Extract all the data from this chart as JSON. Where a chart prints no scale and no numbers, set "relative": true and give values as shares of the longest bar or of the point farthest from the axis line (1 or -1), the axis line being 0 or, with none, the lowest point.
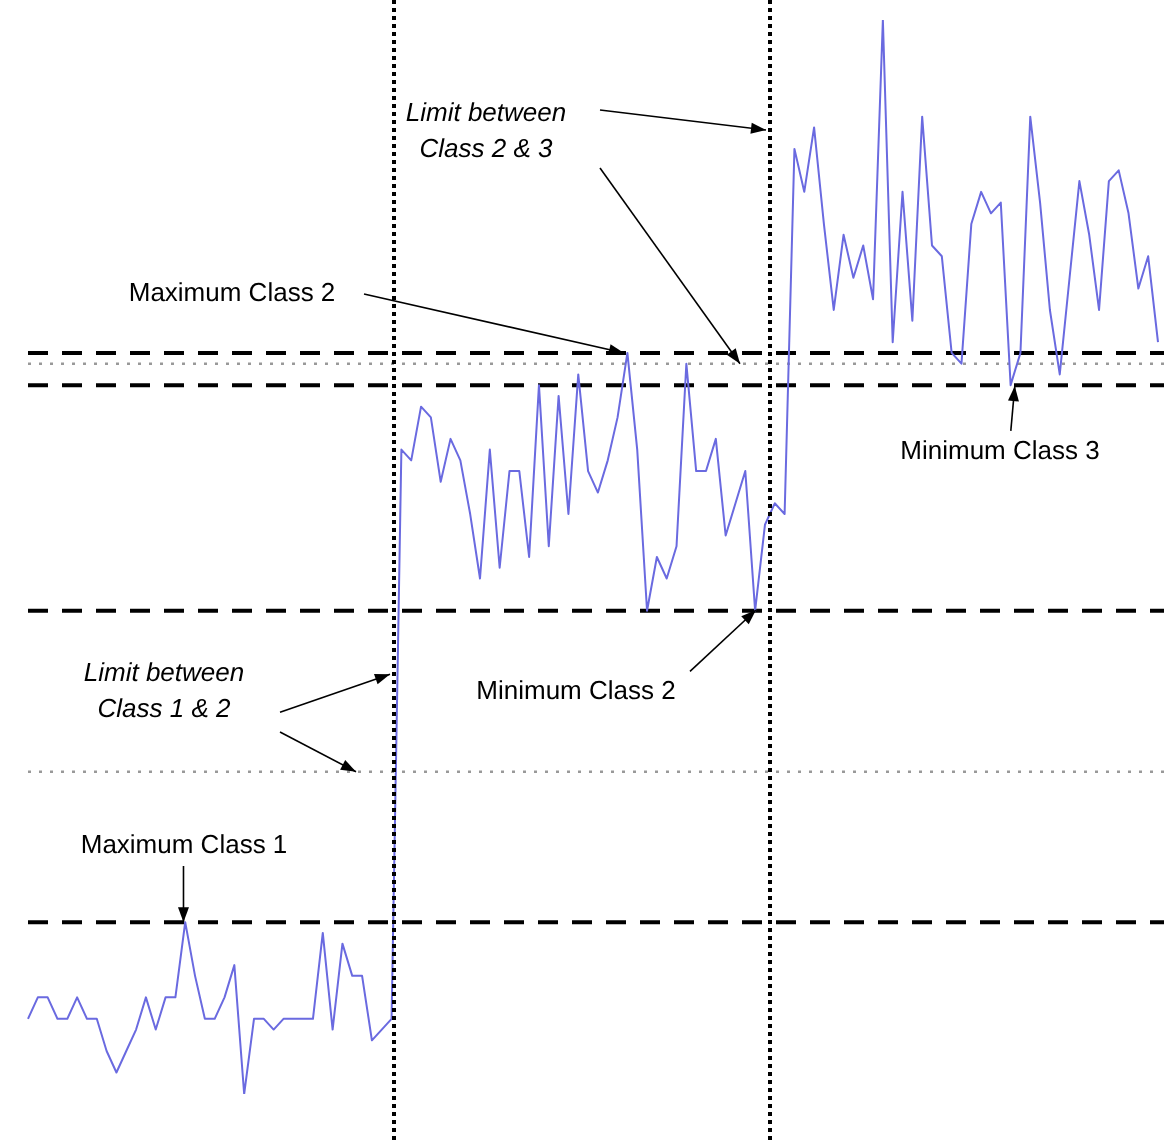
{
  "chart_data": {
    "type": "line",
    "relative": true,
    "categories": [
      null,
      null,
      null,
      null,
      null,
      null,
      null,
      null,
      null,
      null,
      null,
      null,
      null,
      null,
      null,
      null,
      null,
      null,
      null,
      null,
      null,
      null,
      null,
      null,
      null,
      null,
      null,
      null,
      null,
      null,
      null,
      null,
      null,
      null,
      null,
      null,
      null,
      null,
      null,
      null,
      null,
      null,
      null,
      null,
      null,
      null,
      null,
      null,
      null,
      null,
      null,
      null,
      null,
      null,
      null,
      null,
      null,
      null,
      null,
      null,
      null,
      null,
      null,
      null,
      null,
      null,
      null,
      null,
      null,
      null,
      null,
      null,
      null,
      null,
      null,
      null,
      null,
      null,
      null,
      null,
      null,
      null,
      null,
      null,
      null,
      null,
      null,
      null,
      null,
      null,
      null,
      null,
      null,
      null,
      null,
      null,
      null,
      null,
      null,
      null,
      null,
      null,
      null,
      null,
      null,
      null,
      null,
      null,
      null,
      null,
      null,
      null,
      null,
      null,
      null,
      null
    ],
    "series": [
      {
        "color": "#6a6ae0",
        "values": [
          0.07,
          0.09,
          0.09,
          0.07,
          0.07,
          0.09,
          0.07,
          0.07,
          0.04,
          0.02,
          0.04,
          0.06,
          0.09,
          0.06,
          0.09,
          0.09,
          0.16,
          0.11,
          0.07,
          0.07,
          0.09,
          0.12,
          0,
          0.07,
          0.07,
          0.06,
          0.07,
          0.07,
          0.07,
          0.07,
          0.15,
          0.06,
          0.14,
          0.11,
          0.11,
          0.05,
          0.06,
          0.07,
          0.6,
          0.59,
          0.64,
          0.63,
          0.57,
          0.61,
          0.59,
          0.54,
          0.48,
          0.6,
          0.49,
          0.58,
          0.58,
          0.5,
          0.66,
          0.51,
          0.65,
          0.54,
          0.67,
          0.58,
          0.56,
          0.59,
          0.63,
          0.69,
          0.6,
          0.45,
          0.5,
          0.48,
          0.51,
          0.68,
          0.58,
          0.58,
          0.61,
          0.52,
          0.55,
          0.58,
          0.45,
          0.53,
          0.55,
          0.54,
          0.88,
          0.84,
          0.9,
          0.81,
          0.73,
          0.8,
          0.76,
          0.79,
          0.74,
          1,
          0.7,
          0.84,
          0.72,
          0.91,
          0.79,
          0.78,
          0.69,
          0.68,
          0.81,
          0.84,
          0.82,
          0.83,
          0.66,
          0.69,
          0.91,
          0.83,
          0.73,
          0.67,
          0.76,
          0.85,
          0.8,
          0.73,
          0.85,
          0.86,
          0.82,
          0.75,
          0.78,
          0.7
        ]
      }
    ],
    "ref_lines": [
      {
        "axis": "y",
        "value": 0.16,
        "color": "#000000",
        "line_style": "dashed"
      },
      {
        "axis": "y",
        "value": 0.3,
        "color": "#999999",
        "line_style": "dotted"
      },
      {
        "axis": "y",
        "value": 0.45,
        "color": "#000000",
        "line_style": "dashed"
      },
      {
        "axis": "y",
        "value": 0.69,
        "color": "#000000",
        "line_style": "dashed"
      },
      {
        "axis": "y",
        "value": 0.68,
        "color": "#999999",
        "line_style": "dotted"
      },
      {
        "axis": "y",
        "value": 0.66,
        "color": "#000000",
        "line_style": "dashed"
      }
    ],
    "annotations": [
      "Maximum Class 1",
      "Limit between Class 1 & 2",
      "Minimum Class 2",
      "Maximum Class 2",
      "Limit between Class 2 & 3",
      "Minimum Class 3"
    ],
    "legend": false
  }
}
